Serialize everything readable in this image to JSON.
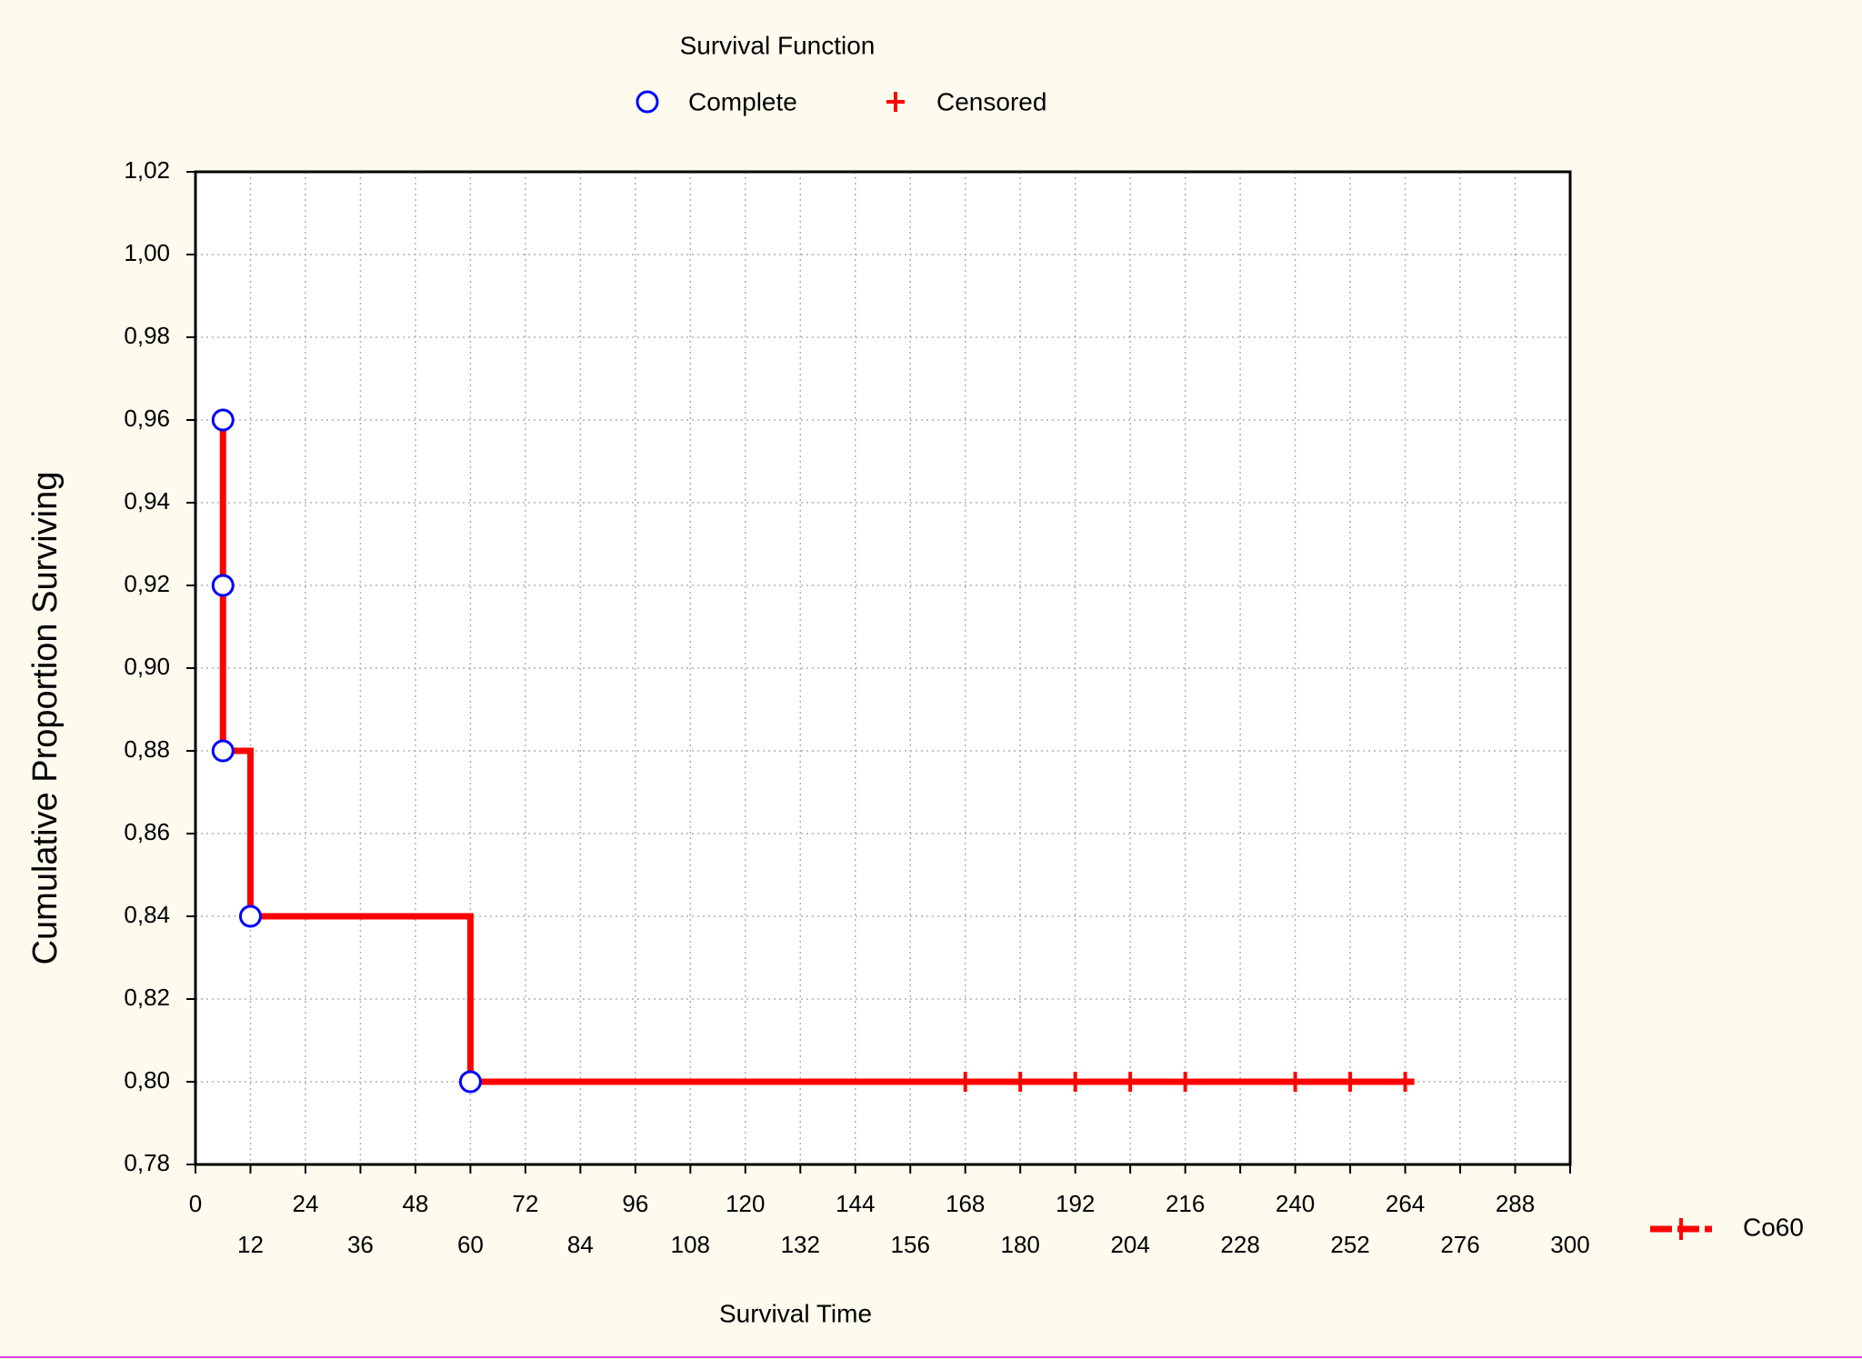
{
  "chart_data": {
    "type": "line",
    "title": "Survival Function",
    "x_label": "Survival Time",
    "y_label": "Cumulative Proportion Surviving",
    "xlim": [
      0,
      300
    ],
    "xticks": [
      0,
      12,
      24,
      36,
      48,
      60,
      72,
      84,
      96,
      108,
      120,
      132,
      144,
      156,
      168,
      180,
      192,
      204,
      216,
      228,
      240,
      252,
      264,
      276,
      288,
      300
    ],
    "ylim": [
      0.78,
      1.02
    ],
    "yticks": [
      {
        "value": 0.78,
        "label": "0,78"
      },
      {
        "value": 0.8,
        "label": "0,80"
      },
      {
        "value": 0.82,
        "label": "0,82"
      },
      {
        "value": 0.84,
        "label": "0,84"
      },
      {
        "value": 0.86,
        "label": "0,86"
      },
      {
        "value": 0.88,
        "label": "0,88"
      },
      {
        "value": 0.9,
        "label": "0,90"
      },
      {
        "value": 0.92,
        "label": "0,92"
      },
      {
        "value": 0.94,
        "label": "0,94"
      },
      {
        "value": 0.96,
        "label": "0,96"
      },
      {
        "value": 0.98,
        "label": "0,98"
      },
      {
        "value": 1.0,
        "label": "1,00"
      },
      {
        "value": 1.02,
        "label": "1,02"
      }
    ],
    "grid": true,
    "series": [
      {
        "name": "Co60",
        "color": "#ff0000",
        "x": [
          6,
          6,
          6,
          12,
          12,
          60,
          60,
          266
        ],
        "values": [
          0.96,
          0.92,
          0.88,
          0.88,
          0.84,
          0.84,
          0.8,
          0.8
        ]
      }
    ],
    "markers": [
      {
        "name": "Complete",
        "marker": "circle",
        "color": "#0000ff",
        "x": [
          6,
          6,
          6,
          12,
          60
        ],
        "values": [
          0.96,
          0.92,
          0.88,
          0.84,
          0.8
        ]
      },
      {
        "name": "Censored",
        "marker": "plus",
        "color": "#ff0000",
        "x": [
          168,
          180,
          192,
          204,
          216,
          240,
          252,
          264
        ],
        "values": [
          0.8,
          0.8,
          0.8,
          0.8,
          0.8,
          0.8,
          0.8,
          0.8
        ]
      }
    ]
  }
}
